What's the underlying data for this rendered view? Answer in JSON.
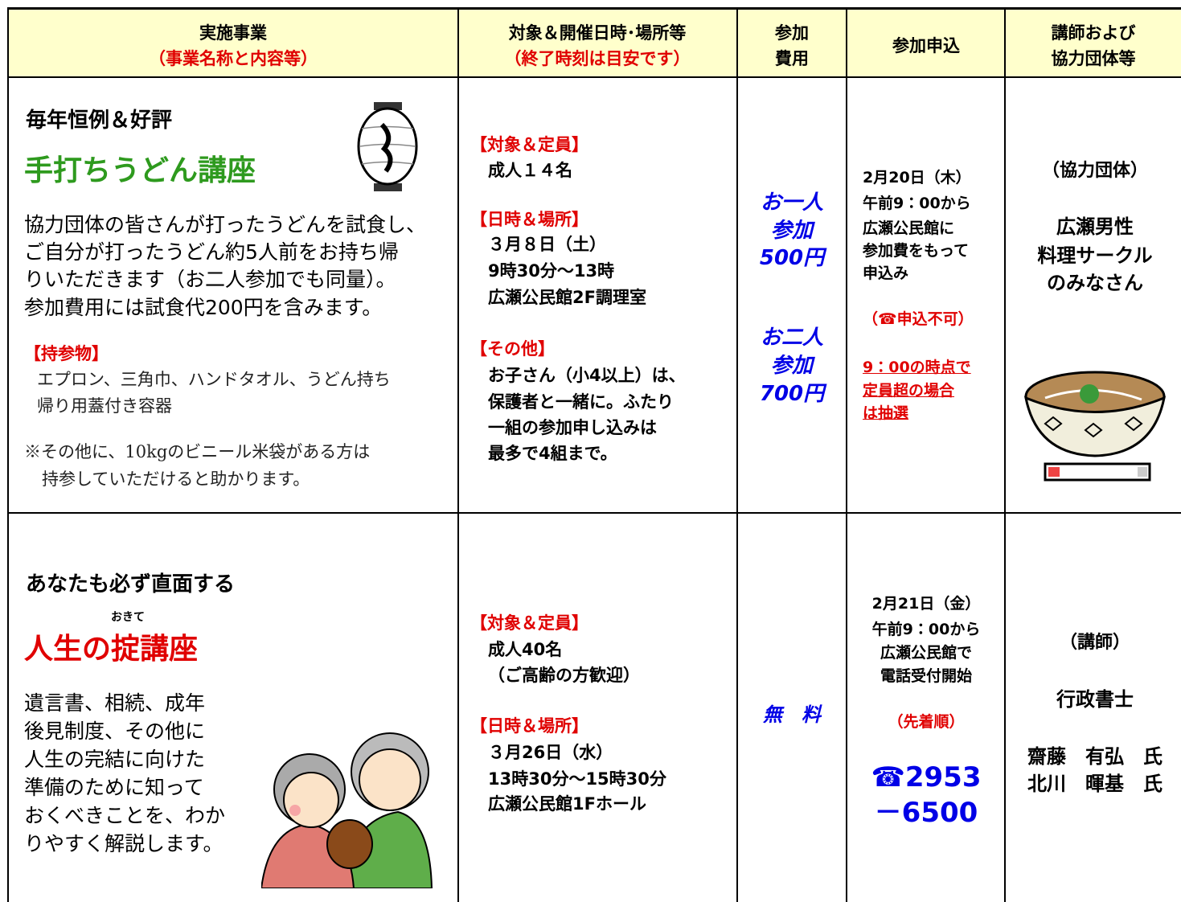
{
  "header": {
    "columns": [
      {
        "lines": [
          "実施事業",
          "（事業名称と内容等）"
        ]
      },
      {
        "lines": [
          "対象＆開催日時･場所等",
          "（終了時刻は目安です）"
        ]
      },
      {
        "lines": [
          "参加",
          "費用"
        ]
      },
      {
        "lines": [
          "参加申込"
        ]
      },
      {
        "lines": [
          "講師および",
          "協力団体等"
        ]
      }
    ]
  },
  "rows": [
    {
      "lead": "毎年恒例＆好評",
      "title": "手打ちうどん講座",
      "description": [
        "協力団体の皆さんが打ったうどんを試食し、",
        "ご自分が打ったうどん約5人前をお持ち帰",
        "りいただきます（お二人参加でも同量）。",
        "参加費用には試食代200円を含みます。"
      ],
      "bring_label": "【持参物】",
      "bring": [
        "エプロン、三角巾、ハンドタオル、うどん持ち",
        "帰り用蓋付き容器"
      ],
      "note": [
        "※その他に、10kgのビニール米袋がある方は",
        "持参していただけると助かります。"
      ],
      "target": [
        {
          "label": "【対象＆定員】",
          "lines": [
            "成人１４名"
          ]
        },
        {
          "label": "【日時＆場所】",
          "lines": [
            "３月８日（土）",
            "9時30分～13時",
            "広瀬公民館2F調理室"
          ]
        },
        {
          "label": "【その他】",
          "lines": [
            "お子さん（小4以上）は、",
            "保護者と一緒に。ふたり",
            "一組の参加申し込みは",
            "最多で4組まで。"
          ]
        }
      ],
      "fee": [
        [
          "お一人",
          "参加",
          "500円"
        ],
        [
          "お二人",
          "参加",
          "700円"
        ]
      ],
      "apply": [
        "2月20日（木）",
        "午前9：00から",
        "広瀬公民館に",
        "参加費をもって",
        "申込み"
      ],
      "apply_notice": "（☎申込不可）",
      "apply_lottery": [
        "9：00の時点で",
        "定員超の場合",
        "は抽選"
      ],
      "partner_label": "（協力団体）",
      "partner": [
        "広瀬男性",
        "料理サークル",
        "のみなさん"
      ]
    },
    {
      "lead": "あなたも必ず直面する",
      "ruby": "おきて",
      "title": "人生の掟講座",
      "description": [
        "遺言書、相続、成年",
        "後見制度、その他に",
        "人生の完結に向けた",
        "準備のために知って",
        "おくべきことを、わか",
        "りやすく解説します。"
      ],
      "target": [
        {
          "label": "【対象＆定員】",
          "lines": [
            "成人40名",
            "（ご高齢の方歓迎）"
          ]
        },
        {
          "label": "【日時＆場所】",
          "lines": [
            "３月26日（水）",
            "13時30分～15時30分",
            "広瀬公民館1Fホール"
          ]
        }
      ],
      "fee": "無　料",
      "apply": [
        "2月21日（金）",
        "午前9：00から",
        "広瀬公民館で",
        "電話受付開始"
      ],
      "apply_notice": "（先着順）",
      "phone": [
        "☎2953",
        "－6500"
      ],
      "lecturer_label": "（講師）",
      "lecturer_title": "行政書士",
      "lecturers": [
        "齋藤　有弘　氏",
        "北川　暉基　氏"
      ]
    }
  ]
}
